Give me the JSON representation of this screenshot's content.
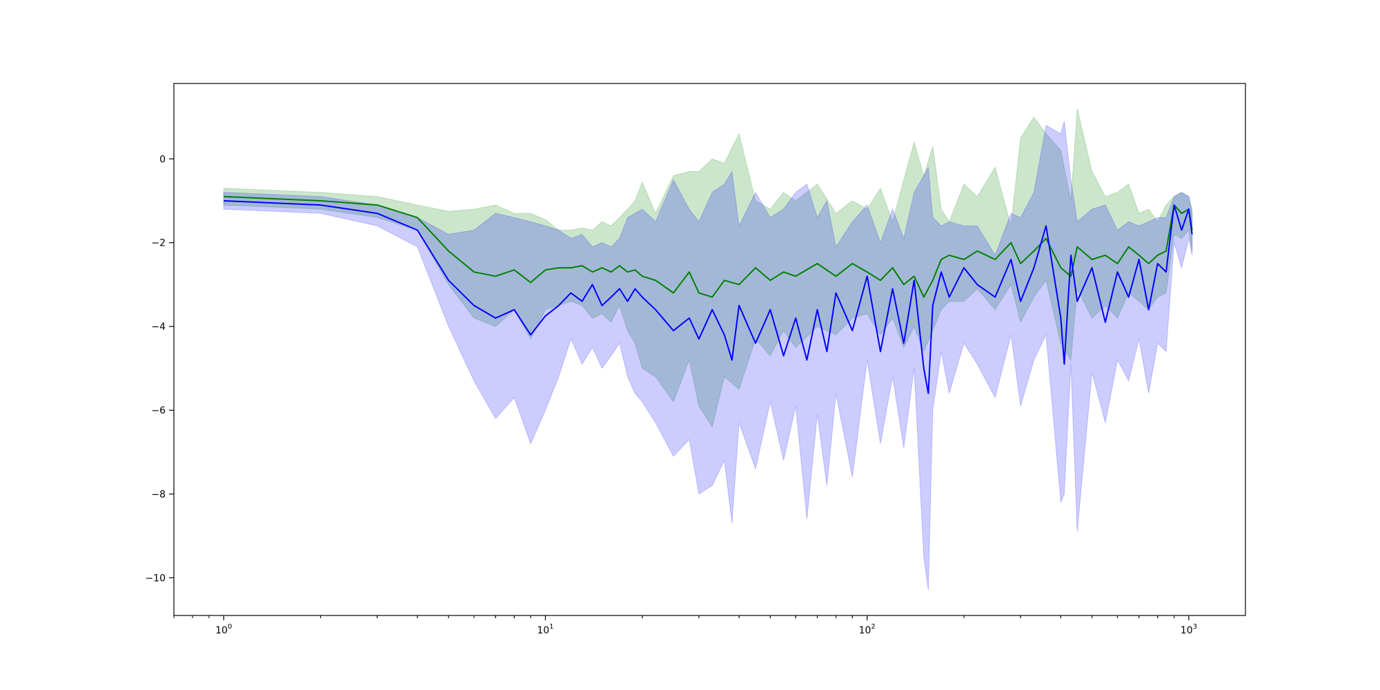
{
  "chart_data": {
    "type": "line",
    "title": "",
    "xlabel": "",
    "ylabel": "",
    "xscale": "log",
    "xlim": [
      0.7,
      1500
    ],
    "ylim": [
      -10.9,
      1.8
    ],
    "grid": false,
    "legend": "none",
    "x_ticks": [
      {
        "base": "10",
        "exp": "0",
        "value": 1
      },
      {
        "base": "10",
        "exp": "1",
        "value": 10
      },
      {
        "base": "10",
        "exp": "2",
        "value": 100
      },
      {
        "base": "10",
        "exp": "3",
        "value": 1000
      }
    ],
    "y_ticks": [
      {
        "label": "0",
        "value": 0
      },
      {
        "label": "−2",
        "value": -2
      },
      {
        "label": "−4",
        "value": -4
      },
      {
        "label": "−6",
        "value": -6
      },
      {
        "label": "−8",
        "value": -8
      },
      {
        "label": "−10",
        "value": -10
      }
    ],
    "series": [
      {
        "color": "#008000",
        "band_color": "#008000",
        "band_opacity": 0.2,
        "x": [
          1,
          2,
          3,
          4,
          5,
          6,
          7,
          8,
          9,
          10,
          11,
          12,
          13,
          14,
          15,
          16,
          17,
          18,
          19,
          20,
          22,
          25,
          28,
          30,
          33,
          36,
          40,
          45,
          50,
          55,
          60,
          70,
          80,
          90,
          100,
          110,
          120,
          130,
          140,
          150,
          160,
          170,
          180,
          200,
          220,
          250,
          280,
          300,
          330,
          360,
          400,
          430,
          450,
          500,
          550,
          600,
          650,
          700,
          750,
          800,
          850,
          900,
          950,
          1000,
          1024
        ],
        "y": [
          -0.9,
          -1.0,
          -1.1,
          -1.4,
          -2.2,
          -2.7,
          -2.8,
          -2.65,
          -2.95,
          -2.65,
          -2.6,
          -2.6,
          -2.55,
          -2.7,
          -2.6,
          -2.7,
          -2.55,
          -2.7,
          -2.65,
          -2.8,
          -2.9,
          -3.2,
          -2.7,
          -3.2,
          -3.3,
          -2.9,
          -3.0,
          -2.6,
          -2.9,
          -2.7,
          -2.8,
          -2.5,
          -2.8,
          -2.5,
          -2.7,
          -2.9,
          -2.6,
          -3.0,
          -2.8,
          -3.3,
          -2.9,
          -2.4,
          -2.3,
          -2.4,
          -2.2,
          -2.4,
          -2.0,
          -2.5,
          -2.2,
          -1.9,
          -2.6,
          -2.8,
          -2.1,
          -2.4,
          -2.3,
          -2.5,
          -2.1,
          -2.3,
          -2.5,
          -2.3,
          -2.2,
          -1.1,
          -1.3,
          -1.2,
          -1.7
        ],
        "upper": [
          -0.7,
          -0.8,
          -0.9,
          -1.1,
          -1.25,
          -1.2,
          -1.1,
          -1.3,
          -1.3,
          -1.45,
          -1.7,
          -1.7,
          -1.65,
          -1.7,
          -1.5,
          -1.6,
          -1.4,
          -1.2,
          -1.0,
          -0.55,
          -1.3,
          -0.4,
          -0.3,
          -0.3,
          0.0,
          -0.1,
          0.6,
          -1.0,
          -1.2,
          -0.8,
          -1.0,
          -0.6,
          -1.3,
          -1.0,
          -1.2,
          -0.7,
          -1.5,
          -0.5,
          0.4,
          -0.4,
          0.3,
          -1.2,
          -1.5,
          -0.6,
          -0.9,
          -0.2,
          -1.6,
          0.5,
          1.0,
          0.6,
          0.2,
          -1.0,
          1.2,
          -0.3,
          -0.9,
          -0.8,
          -0.6,
          -1.3,
          -1.2,
          -1.5,
          -1.1,
          -0.9,
          -0.8,
          -0.9,
          -1.2
        ],
        "lower": [
          -1.1,
          -1.2,
          -1.4,
          -1.7,
          -3.0,
          -3.8,
          -4.0,
          -3.6,
          -4.3,
          -3.6,
          -3.5,
          -3.4,
          -3.5,
          -3.8,
          -3.7,
          -3.9,
          -3.5,
          -4.1,
          -4.4,
          -5.0,
          -5.2,
          -5.8,
          -4.8,
          -5.9,
          -6.4,
          -5.2,
          -5.5,
          -4.3,
          -4.7,
          -4.1,
          -4.5,
          -4.0,
          -4.2,
          -3.8,
          -3.7,
          -4.2,
          -3.8,
          -4.5,
          -4.0,
          -4.6,
          -4.1,
          -3.6,
          -3.4,
          -3.4,
          -3.1,
          -3.6,
          -3.0,
          -3.9,
          -3.3,
          -2.9,
          -4.4,
          -4.8,
          -3.1,
          -3.8,
          -3.5,
          -3.8,
          -3.2,
          -3.4,
          -3.6,
          -3.3,
          -3.2,
          -1.8,
          -1.9,
          -1.7,
          -2.2
        ]
      },
      {
        "color": "#0000ff",
        "band_color": "#0000ff",
        "band_opacity": 0.2,
        "x": [
          1,
          2,
          3,
          4,
          5,
          6,
          7,
          8,
          9,
          10,
          11,
          12,
          13,
          14,
          15,
          16,
          17,
          18,
          19,
          20,
          22,
          25,
          28,
          30,
          33,
          36,
          38,
          40,
          45,
          50,
          55,
          60,
          65,
          70,
          75,
          80,
          90,
          100,
          110,
          120,
          130,
          140,
          150,
          155,
          160,
          170,
          180,
          200,
          220,
          250,
          280,
          300,
          330,
          360,
          400,
          410,
          430,
          450,
          500,
          550,
          600,
          650,
          700,
          750,
          800,
          850,
          900,
          950,
          1000,
          1024
        ],
        "y": [
          -1.0,
          -1.1,
          -1.3,
          -1.7,
          -2.9,
          -3.5,
          -3.8,
          -3.6,
          -4.2,
          -3.75,
          -3.5,
          -3.2,
          -3.4,
          -3.0,
          -3.5,
          -3.3,
          -3.1,
          -3.4,
          -3.1,
          -3.3,
          -3.6,
          -4.1,
          -3.8,
          -4.3,
          -3.6,
          -4.2,
          -4.8,
          -3.5,
          -4.4,
          -3.6,
          -4.7,
          -3.8,
          -4.8,
          -3.6,
          -4.6,
          -3.2,
          -4.1,
          -2.8,
          -4.6,
          -3.1,
          -4.4,
          -2.9,
          -5.0,
          -5.6,
          -3.5,
          -2.7,
          -3.3,
          -2.6,
          -3.0,
          -3.3,
          -2.4,
          -3.4,
          -2.6,
          -1.6,
          -3.8,
          -4.9,
          -2.3,
          -3.4,
          -2.6,
          -3.9,
          -2.7,
          -3.3,
          -2.4,
          -3.6,
          -2.5,
          -2.7,
          -1.1,
          -1.7,
          -1.2,
          -1.8
        ],
        "upper": [
          -0.8,
          -0.9,
          -1.1,
          -1.4,
          -1.8,
          -1.7,
          -1.3,
          -1.4,
          -1.5,
          -1.6,
          -1.7,
          -1.9,
          -1.8,
          -2.1,
          -2.0,
          -2.1,
          -1.9,
          -1.4,
          -1.3,
          -1.2,
          -1.5,
          -0.5,
          -1.2,
          -1.5,
          -0.8,
          -0.6,
          -0.3,
          -1.6,
          -0.8,
          -1.4,
          -1.2,
          -0.8,
          -0.6,
          -1.4,
          -1.0,
          -2.1,
          -1.5,
          -1.1,
          -2.0,
          -1.2,
          -1.9,
          -0.8,
          -0.4,
          -0.2,
          -1.4,
          -1.6,
          -1.5,
          -1.6,
          -1.6,
          -2.3,
          -1.3,
          -1.4,
          -0.8,
          0.8,
          0.6,
          0.9,
          -0.5,
          -1.5,
          -1.2,
          -1.1,
          -1.7,
          -1.5,
          -1.6,
          -1.5,
          -1.4,
          -1.4,
          -0.9,
          -0.8,
          -0.9,
          -1.3
        ],
        "lower": [
          -1.2,
          -1.3,
          -1.6,
          -2.1,
          -4.0,
          -5.3,
          -6.2,
          -5.7,
          -6.8,
          -6.0,
          -5.2,
          -4.3,
          -4.9,
          -4.5,
          -5.0,
          -4.7,
          -4.4,
          -5.2,
          -5.6,
          -5.8,
          -6.3,
          -7.1,
          -6.7,
          -8.0,
          -7.8,
          -7.2,
          -8.7,
          -6.3,
          -7.4,
          -5.8,
          -7.2,
          -5.9,
          -8.6,
          -6.1,
          -7.8,
          -5.6,
          -7.6,
          -4.8,
          -6.8,
          -5.2,
          -6.9,
          -5.0,
          -9.5,
          -10.3,
          -6.0,
          -4.6,
          -5.6,
          -4.4,
          -4.9,
          -5.7,
          -4.2,
          -5.9,
          -4.8,
          -4.2,
          -8.2,
          -8.0,
          -4.9,
          -8.9,
          -5.1,
          -6.3,
          -4.8,
          -5.3,
          -4.3,
          -5.6,
          -4.4,
          -4.6,
          -2.0,
          -2.6,
          -1.9,
          -2.3
        ]
      }
    ]
  }
}
